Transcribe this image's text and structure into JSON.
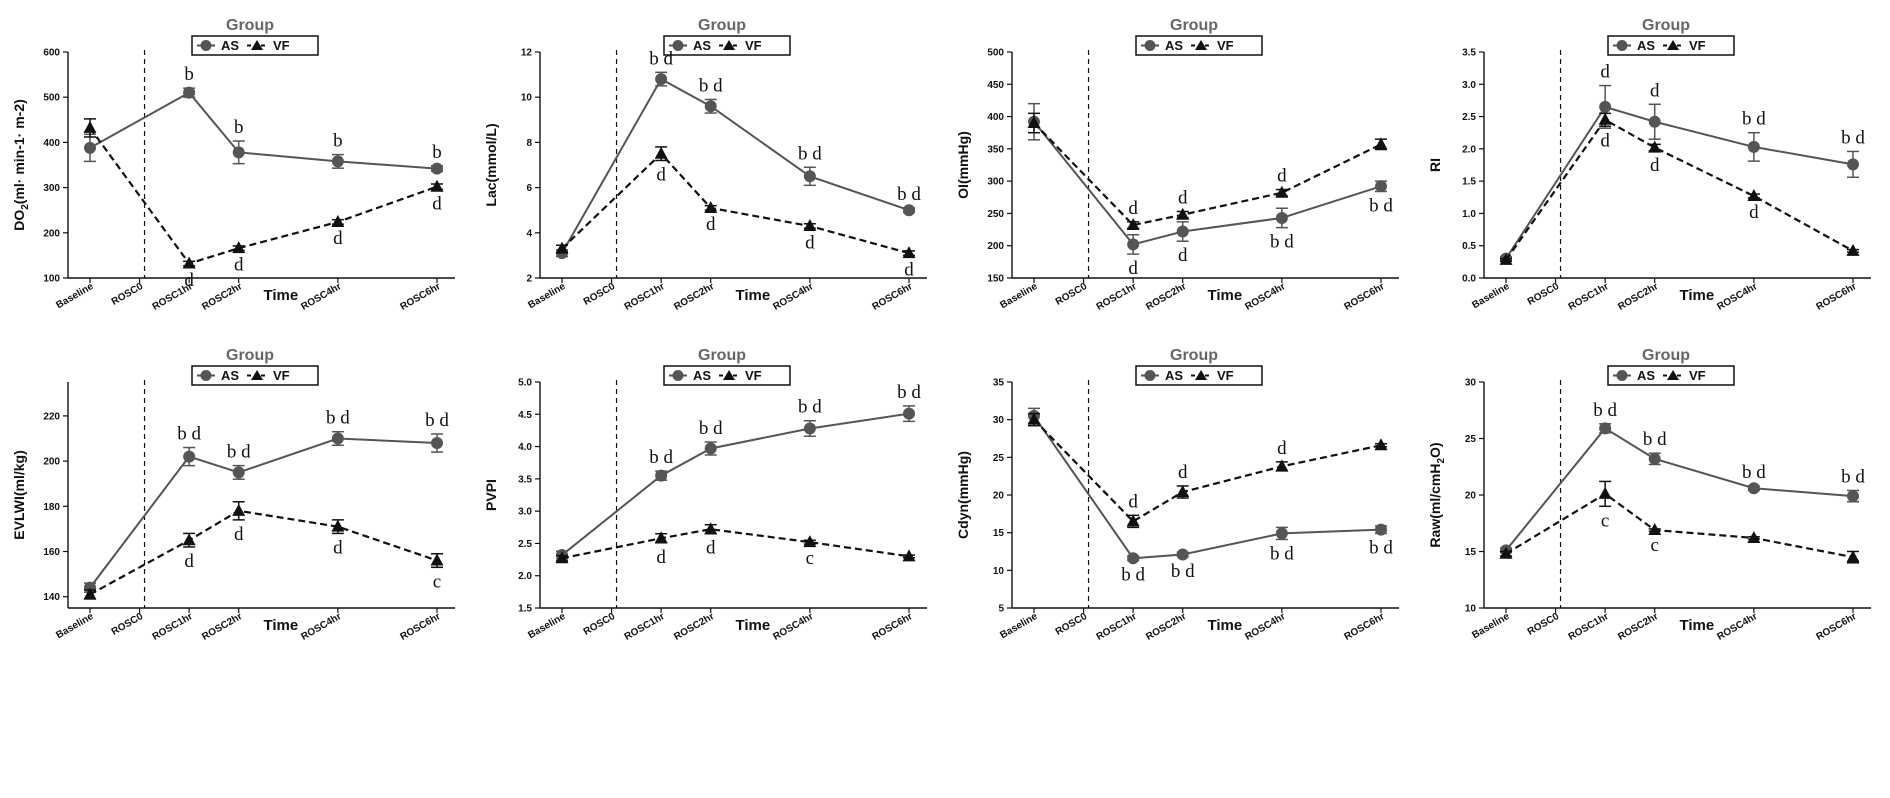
{
  "legend": {
    "title": "Group",
    "series_labels": [
      "AS",
      "VF"
    ]
  },
  "chart_data": [
    {
      "type": "line",
      "title": "",
      "xlabel": "Time",
      "ylabel": "DO2(ml· min-1· m-2)",
      "categories": [
        "Baseline",
        "ROSC0",
        "ROSC1hr",
        "ROSC2hr",
        "ROSC4hr",
        "ROSC6hr"
      ],
      "ylim": [
        100,
        600
      ],
      "yticks": [
        100,
        200,
        300,
        400,
        500,
        600
      ],
      "series": [
        {
          "name": "AS",
          "x": [
            0,
            2,
            3,
            5,
            7
          ],
          "values": [
            388,
            510,
            378,
            358,
            342
          ],
          "errors": [
            30,
            10,
            25,
            15,
            6
          ],
          "annotations": [
            "",
            "b",
            "b",
            "b",
            "b"
          ]
        },
        {
          "name": "VF",
          "x": [
            0,
            2,
            3,
            5,
            7
          ],
          "values": [
            432,
            132,
            166,
            224,
            302
          ],
          "errors": [
            20,
            5,
            5,
            5,
            6
          ],
          "annotations": [
            "",
            "d",
            "d",
            "d",
            "d"
          ]
        }
      ]
    },
    {
      "type": "line",
      "title": "",
      "xlabel": "Time",
      "ylabel": "Lac(mmol/L)",
      "categories": [
        "Baseline",
        "ROSC0",
        "ROSC1hr",
        "ROSC2hr",
        "ROSC4hr",
        "ROSC6hr"
      ],
      "ylim": [
        2,
        12
      ],
      "yticks": [
        2,
        4,
        6,
        8,
        10,
        12
      ],
      "series": [
        {
          "name": "AS",
          "x": [
            0,
            2,
            3,
            5,
            7
          ],
          "values": [
            3.1,
            10.8,
            9.6,
            6.5,
            5.0
          ],
          "errors": [
            0.15,
            0.3,
            0.3,
            0.4,
            0.1
          ],
          "annotations": [
            "",
            "bd",
            "bd",
            "bd",
            "bd"
          ]
        },
        {
          "name": "VF",
          "x": [
            0,
            2,
            3,
            5,
            7
          ],
          "values": [
            3.3,
            7.5,
            5.1,
            4.3,
            3.1
          ],
          "errors": [
            0.15,
            0.3,
            0.1,
            0.1,
            0.1
          ],
          "annotations": [
            "",
            "d",
            "d",
            "d",
            "d"
          ]
        }
      ]
    },
    {
      "type": "line",
      "title": "",
      "xlabel": "Time",
      "ylabel": "OI(mmHg)",
      "categories": [
        "Baseline",
        "ROSC0",
        "ROSC1hr",
        "ROSC2hr",
        "ROSC4hr",
        "ROSC6hr"
      ],
      "ylim": [
        150,
        500
      ],
      "yticks": [
        150,
        200,
        250,
        300,
        350,
        400,
        450,
        500
      ],
      "series": [
        {
          "name": "AS",
          "x": [
            0,
            2,
            3,
            5,
            7
          ],
          "values": [
            392,
            202,
            222,
            243,
            292
          ],
          "errors": [
            28,
            15,
            15,
            15,
            8
          ],
          "annotations": [
            "",
            "d",
            "d",
            "bd",
            "bd"
          ]
        },
        {
          "name": "VF",
          "x": [
            0,
            2,
            3,
            5,
            7
          ],
          "values": [
            390,
            232,
            248,
            282,
            357
          ],
          "errors": [
            15,
            5,
            5,
            5,
            8
          ],
          "annotations": [
            "",
            "d",
            "d",
            "d",
            ""
          ]
        }
      ]
    },
    {
      "type": "line",
      "title": "",
      "xlabel": "Time",
      "ylabel": "RI",
      "categories": [
        "Baseline",
        "ROSC0",
        "ROSC1hr",
        "ROSC2hr",
        "ROSC4hr",
        "ROSC6hr"
      ],
      "ylim": [
        0,
        3.5
      ],
      "yticks": [
        0.0,
        0.5,
        1.0,
        1.5,
        2.0,
        2.5,
        3.0,
        3.5
      ],
      "series": [
        {
          "name": "AS",
          "x": [
            0,
            2,
            3,
            5,
            7
          ],
          "values": [
            0.3,
            2.65,
            2.42,
            2.03,
            1.76
          ],
          "errors": [
            0.03,
            0.33,
            0.27,
            0.22,
            0.2
          ],
          "annotations": [
            "",
            "d",
            "d",
            "bd",
            "bd"
          ]
        },
        {
          "name": "VF",
          "x": [
            0,
            2,
            3,
            5,
            7
          ],
          "values": [
            0.28,
            2.45,
            2.02,
            1.27,
            0.42
          ],
          "errors": [
            0.02,
            0.1,
            0.05,
            0.03,
            0.02
          ],
          "annotations": [
            "",
            "d",
            "d",
            "d",
            ""
          ]
        }
      ]
    },
    {
      "type": "line",
      "title": "",
      "xlabel": "Time",
      "ylabel": "EVLWI(ml/kg)",
      "categories": [
        "Baseline",
        "ROSC0",
        "ROSC1hr",
        "ROSC2hr",
        "ROSC4hr",
        "ROSC6hr"
      ],
      "ylim": [
        135,
        235
      ],
      "yticks": [
        140,
        160,
        180,
        200,
        220
      ],
      "series": [
        {
          "name": "AS",
          "x": [
            0,
            2,
            3,
            5,
            7
          ],
          "values": [
            144,
            202,
            195,
            210,
            208
          ],
          "errors": [
            2,
            4,
            3,
            3,
            4
          ],
          "annotations": [
            "",
            "bd",
            "bd",
            "bd",
            "bd"
          ]
        },
        {
          "name": "VF",
          "x": [
            0,
            2,
            3,
            5,
            7
          ],
          "values": [
            141,
            165,
            178,
            171,
            156
          ],
          "errors": [
            2,
            3,
            4,
            3,
            3
          ],
          "annotations": [
            "",
            "d",
            "d",
            "d",
            "c"
          ]
        }
      ]
    },
    {
      "type": "line",
      "title": "",
      "xlabel": "Time",
      "ylabel": "PVPI",
      "categories": [
        "Baseline",
        "ROSC0",
        "ROSC1hr",
        "ROSC2hr",
        "ROSC4hr",
        "ROSC6hr"
      ],
      "ylim": [
        1.5,
        5.0
      ],
      "yticks": [
        1.5,
        2.0,
        2.5,
        3.0,
        3.5,
        4.0,
        4.5,
        5.0
      ],
      "series": [
        {
          "name": "AS",
          "x": [
            0,
            2,
            3,
            5,
            7
          ],
          "values": [
            2.32,
            3.55,
            3.97,
            4.28,
            4.51
          ],
          "errors": [
            0.06,
            0.07,
            0.1,
            0.12,
            0.12
          ],
          "annotations": [
            "",
            "bd",
            "bd",
            "bd",
            "bd"
          ]
        },
        {
          "name": "VF",
          "x": [
            0,
            2,
            3,
            5,
            7
          ],
          "values": [
            2.27,
            2.58,
            2.72,
            2.52,
            2.3
          ],
          "errors": [
            0.04,
            0.07,
            0.07,
            0.03,
            0.02
          ],
          "annotations": [
            "",
            "d",
            "d",
            "c",
            ""
          ]
        }
      ]
    },
    {
      "type": "line",
      "title": "",
      "xlabel": "Time",
      "ylabel": "Cdyn(mmHg)",
      "categories": [
        "Baseline",
        "ROSC0",
        "ROSC1hr",
        "ROSC2hr",
        "ROSC4hr",
        "ROSC6hr"
      ],
      "ylim": [
        5,
        35
      ],
      "yticks": [
        5,
        10,
        15,
        20,
        25,
        30,
        35
      ],
      "series": [
        {
          "name": "AS",
          "x": [
            0,
            2,
            3,
            5,
            7
          ],
          "values": [
            30.5,
            11.6,
            12.1,
            14.9,
            15.4
          ],
          "errors": [
            1.0,
            0.3,
            0.3,
            0.8,
            0.5
          ],
          "annotations": [
            "",
            "bd",
            "bd",
            "bd",
            "bd"
          ]
        },
        {
          "name": "VF",
          "x": [
            0,
            2,
            3,
            5,
            7
          ],
          "values": [
            30.0,
            16.5,
            20.4,
            23.8,
            26.6
          ],
          "errors": [
            0.8,
            0.8,
            0.8,
            0.6,
            0.2
          ],
          "annotations": [
            "",
            "d",
            "d",
            "d",
            ""
          ]
        }
      ]
    },
    {
      "type": "line",
      "title": "",
      "xlabel": "Time",
      "ylabel": "Raw(ml/cmH2O)",
      "categories": [
        "Baseline",
        "ROSC0",
        "ROSC1hr",
        "ROSC2hr",
        "ROSC4hr",
        "ROSC6hr"
      ],
      "ylim": [
        10,
        30
      ],
      "yticks": [
        10,
        15,
        20,
        25,
        30
      ],
      "series": [
        {
          "name": "AS",
          "x": [
            0,
            2,
            3,
            5,
            7
          ],
          "values": [
            15.1,
            25.9,
            23.2,
            20.6,
            19.9
          ],
          "errors": [
            0.2,
            0.4,
            0.5,
            0.2,
            0.5
          ],
          "annotations": [
            "",
            "bd",
            "bd",
            "bd",
            "bd"
          ]
        },
        {
          "name": "VF",
          "x": [
            0,
            2,
            3,
            5,
            7
          ],
          "values": [
            14.8,
            20.1,
            16.9,
            16.2,
            14.5
          ],
          "errors": [
            0.2,
            1.1,
            0.1,
            0.1,
            0.5
          ],
          "annotations": [
            "",
            "c",
            "c",
            "",
            ""
          ]
        }
      ]
    }
  ]
}
